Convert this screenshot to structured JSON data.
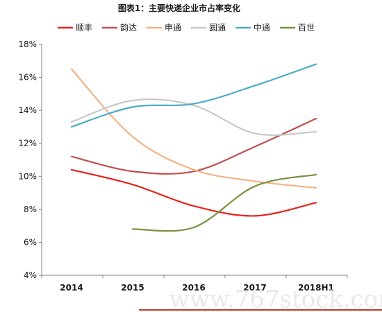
{
  "chart_data": {
    "type": "line",
    "title": "图表1：主要快递企业市占率变化",
    "categories": [
      "2014",
      "2015",
      "2016",
      "2017",
      "2018H1"
    ],
    "ylim": [
      4,
      18
    ],
    "yticks": [
      "4%",
      "6%",
      "8%",
      "10%",
      "12%",
      "14%",
      "16%",
      "18%"
    ],
    "ytick_values": [
      4,
      6,
      8,
      10,
      12,
      14,
      16,
      18
    ],
    "legend_position": "top",
    "grid": false,
    "series": [
      {
        "name": "顺丰",
        "color": "#e8231c",
        "values": [
          10.4,
          9.5,
          8.2,
          7.6,
          8.4
        ]
      },
      {
        "name": "韵达",
        "color": "#c0504d",
        "values": [
          11.2,
          10.3,
          10.3,
          11.8,
          13.5
        ]
      },
      {
        "name": "申通",
        "color": "#f4b183",
        "values": [
          16.5,
          12.4,
          10.4,
          9.7,
          9.3
        ]
      },
      {
        "name": "圆通",
        "color": "#c8c8c8",
        "values": [
          13.3,
          14.6,
          14.3,
          12.6,
          12.7
        ]
      },
      {
        "name": "中通",
        "color": "#4bacc6",
        "values": [
          13.0,
          14.2,
          14.4,
          15.5,
          16.8
        ]
      },
      {
        "name": "百世",
        "color": "#77933c",
        "values": [
          null,
          6.8,
          6.9,
          9.4,
          10.1
        ]
      }
    ]
  },
  "watermark": "www.767stock.com"
}
